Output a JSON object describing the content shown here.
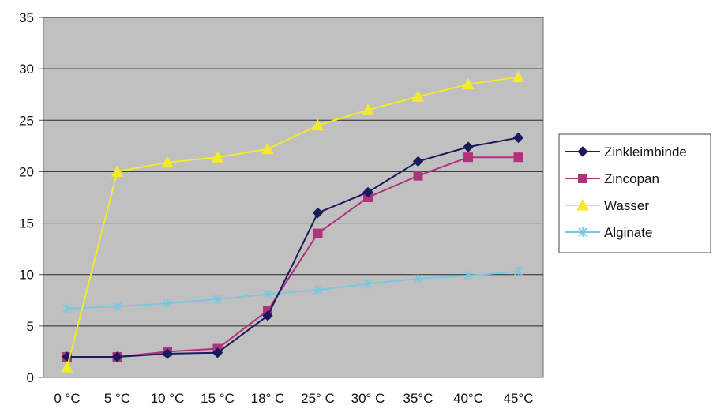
{
  "chart_data": {
    "type": "line",
    "title": "",
    "xlabel": "",
    "ylabel": "",
    "ylim": [
      0,
      35
    ],
    "yticks": [
      0,
      5,
      10,
      15,
      20,
      25,
      30,
      35
    ],
    "grid": true,
    "legend_position": "right",
    "plot_background": "#c0c0c0",
    "categories": [
      "0 °C",
      "5 °C",
      "10 °C",
      "15 °C",
      "18° C",
      "25° C",
      "30° C",
      "35°C",
      "40°C",
      "45°C"
    ],
    "series": [
      {
        "name": "Zinkleimbinde",
        "marker": "diamond",
        "color": "#1a1a5e",
        "values": [
          2,
          2,
          2.3,
          2.4,
          6,
          16,
          18,
          21,
          22.4,
          23.3
        ]
      },
      {
        "name": "Zincopan",
        "marker": "square",
        "color": "#b0327a",
        "values": [
          2,
          2,
          2.5,
          2.8,
          6.5,
          14,
          17.5,
          19.6,
          21.4,
          21.4
        ]
      },
      {
        "name": "Wasser",
        "marker": "triangle",
        "color": "#f2ea2a",
        "values": [
          1,
          20,
          20.9,
          21.4,
          22.2,
          24.5,
          26,
          27.3,
          28.5,
          29.2
        ]
      },
      {
        "name": "Alginate",
        "marker": "x",
        "color": "#7ac8e0",
        "values": [
          6.7,
          6.9,
          7.2,
          7.6,
          8.1,
          8.5,
          9.1,
          9.6,
          9.9,
          10.3
        ]
      }
    ]
  }
}
